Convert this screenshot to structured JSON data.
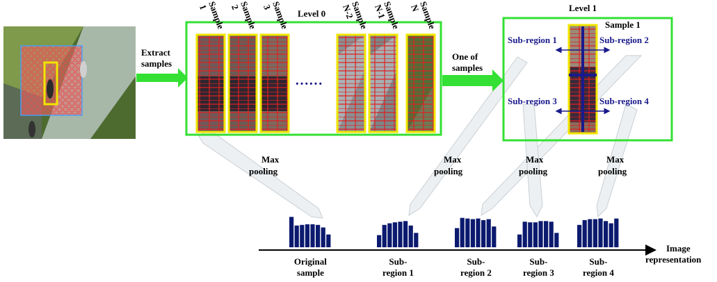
{
  "colors": {
    "bar": "#0b1a6e",
    "green_box": "#33e033",
    "yellow_box": "#f2e600",
    "blue_annot": "#1a1a8c",
    "ghost_arrow": "#e8ecef",
    "red_grid": "#e02020"
  },
  "input_label": {
    "line1": "Extract",
    "line2": "samples"
  },
  "level0": {
    "title": "Level 0",
    "samples": [
      {
        "line1": "Sample",
        "line2": "1"
      },
      {
        "line1": "Sample",
        "line2": "2"
      },
      {
        "line1": "Sample",
        "line2": "3"
      },
      {
        "line1": "Sample",
        "line2": "N-2"
      },
      {
        "line1": "Sample",
        "line2": "N-1"
      },
      {
        "line1": "Sample",
        "line2": "N"
      }
    ],
    "ellipsis": "……"
  },
  "mid_label": {
    "line1": "One of",
    "line2": "samples"
  },
  "level1": {
    "title": "Level 1",
    "sample_label": "Sample 1",
    "subregions": [
      "Sub-region 1",
      "Sub-region 2",
      "Sub-region 3",
      "Sub-region 4"
    ]
  },
  "pooling": [
    {
      "line1": "Max",
      "line2": "pooling"
    },
    {
      "line1": "Max",
      "line2": "pooling"
    },
    {
      "line1": "Max",
      "line2": "pooling"
    },
    {
      "line1": "Max",
      "line2": "pooling"
    }
  ],
  "histograms": [
    {
      "label1": "Original",
      "label2": "sample",
      "values": [
        0.95,
        0.68,
        0.7,
        0.72,
        0.72,
        0.7,
        0.62,
        0.4
      ]
    },
    {
      "label1": "Sub-",
      "label2": "region 1",
      "values": [
        0.38,
        0.7,
        0.75,
        0.78,
        0.8,
        0.82,
        0.68,
        0.45
      ]
    },
    {
      "label1": "Sub-",
      "label2": "region 2",
      "values": [
        0.6,
        0.92,
        0.9,
        0.88,
        0.9,
        0.85,
        0.88,
        0.65
      ]
    },
    {
      "label1": "Sub-",
      "label2": "region 3",
      "values": [
        0.4,
        0.8,
        0.78,
        0.78,
        0.82,
        0.82,
        0.8,
        0.45
      ]
    },
    {
      "label1": "Sub-",
      "label2": "region 4",
      "values": [
        0.7,
        0.85,
        0.88,
        0.88,
        0.9,
        0.82,
        0.75,
        0.9
      ]
    }
  ],
  "axis_label": {
    "line1": "Image",
    "line2": "representation"
  }
}
